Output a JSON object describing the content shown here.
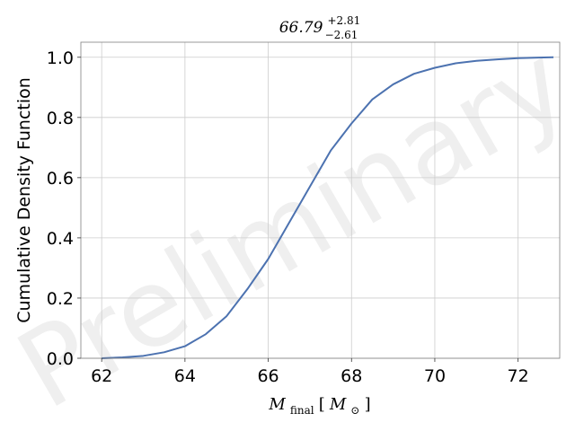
{
  "chart_data": {
    "type": "line",
    "title": {
      "base": "66.79",
      "sup": "+2.81",
      "sub": "−2.61"
    },
    "xlabel": {
      "base": "M",
      "sub": "final",
      "bracket_open": "[",
      "inner_base": "M",
      "inner_sub": "⊙",
      "bracket_close": "]"
    },
    "ylabel": "Cumulative Density Function",
    "watermark": "Preliminary",
    "xlim": [
      61.5,
      73.0
    ],
    "ylim": [
      0.0,
      1.05
    ],
    "xticks": [
      62,
      64,
      66,
      68,
      70,
      72
    ],
    "xtick_labels": [
      "62",
      "64",
      "66",
      "68",
      "70",
      "72"
    ],
    "yticks": [
      0.0,
      0.2,
      0.4,
      0.6,
      0.8,
      1.0
    ],
    "ytick_labels": [
      "0.0",
      "0.2",
      "0.4",
      "0.6",
      "0.8",
      "1.0"
    ],
    "grid": true,
    "series": [
      {
        "color": "#4c72b0",
        "x": [
          62.0,
          62.5,
          63.0,
          63.5,
          64.0,
          64.5,
          65.0,
          65.5,
          66.0,
          66.5,
          67.0,
          67.5,
          68.0,
          68.5,
          69.0,
          69.5,
          70.0,
          70.5,
          71.0,
          71.5,
          72.0,
          72.5,
          72.85
        ],
        "y": [
          0.0,
          0.003,
          0.008,
          0.02,
          0.04,
          0.08,
          0.14,
          0.23,
          0.33,
          0.45,
          0.57,
          0.69,
          0.78,
          0.86,
          0.91,
          0.945,
          0.965,
          0.98,
          0.988,
          0.993,
          0.997,
          0.999,
          1.0
        ]
      }
    ]
  }
}
